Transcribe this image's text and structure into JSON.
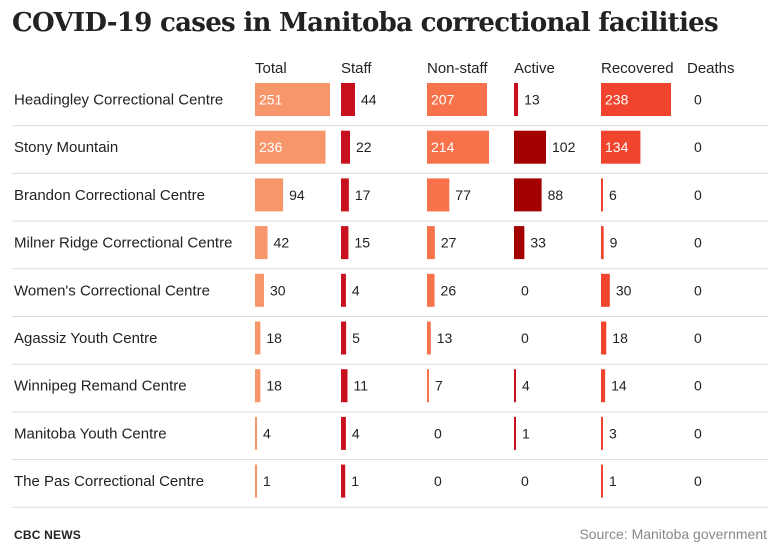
{
  "title": "COVID-19 cases in Manitoba correctional facilities",
  "footer": {
    "brand": "CBC NEWS",
    "source": "Source: Manitoba government"
  },
  "colors": {
    "total": "#f7956b",
    "staff": "#c8101e",
    "non_staff": "#f7714a",
    "active_light": "#c8101e",
    "active_dark": "#a30000",
    "recovered": "#f0442e",
    "zero_line": "#e8a090",
    "text": "#222222",
    "divider": "#d9d9d9"
  },
  "chart_data": {
    "type": "table",
    "columns": [
      "Total",
      "Staff",
      "Non-staff",
      "Active",
      "Recovered",
      "Deaths"
    ],
    "rows": [
      {
        "facility": "Headingley Correctional Centre",
        "values": [
          251,
          44,
          207,
          13,
          238,
          0
        ]
      },
      {
        "facility": "Stony Mountain",
        "values": [
          236,
          22,
          214,
          102,
          134,
          0
        ]
      },
      {
        "facility": "Brandon Correctional Centre",
        "values": [
          94,
          17,
          77,
          88,
          6,
          0
        ]
      },
      {
        "facility": "Milner Ridge Correctional Centre",
        "values": [
          42,
          15,
          27,
          33,
          9,
          0
        ]
      },
      {
        "facility": "Women's Correctional Centre",
        "values": [
          30,
          4,
          26,
          0,
          30,
          0
        ]
      },
      {
        "facility": "Agassiz Youth Centre",
        "values": [
          18,
          5,
          13,
          0,
          18,
          0
        ]
      },
      {
        "facility": "Winnipeg Remand Centre",
        "values": [
          18,
          11,
          7,
          4,
          14,
          0
        ]
      },
      {
        "facility": "Manitoba Youth Centre",
        "values": [
          4,
          4,
          0,
          1,
          3,
          0
        ]
      },
      {
        "facility": "The Pas Correctional Centre",
        "values": [
          1,
          1,
          0,
          0,
          1,
          0
        ]
      }
    ]
  }
}
